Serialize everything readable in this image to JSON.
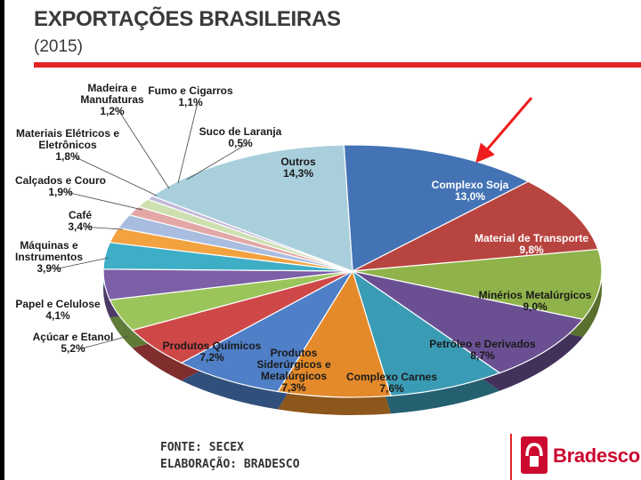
{
  "header": {
    "title": "EXPORTAÇÕES BRASILEIRAS",
    "subtitle": "(2015)"
  },
  "footer": {
    "source": "FONTE: SECEX",
    "elaboration": "ELABORAÇÃO: BRADESCO",
    "brand": "Bradesco"
  },
  "chart_data": {
    "type": "pie",
    "title": "EXPORTAÇÕES BRASILEIRAS",
    "subtitle": "(2015)",
    "unit": "%",
    "slices": [
      {
        "label": "Complexo Soja",
        "value": 13.0,
        "value_text": "13,0%",
        "color": "#4473b5"
      },
      {
        "label": "Material de Transporte",
        "value": 9.8,
        "value_text": "9,8%",
        "color": "#b8443f"
      },
      {
        "label": "Minérios Metalúrgicos",
        "value": 9.0,
        "value_text": "9,0%",
        "color": "#8fb34a"
      },
      {
        "label": "Petróleo e Derivados",
        "value": 8.7,
        "value_text": "8,7%",
        "color": "#6b4f93"
      },
      {
        "label": "Complexo Carnes",
        "value": 7.6,
        "value_text": "7,6%",
        "color": "#3a9bb4"
      },
      {
        "label": "Produtos Siderúrgicos e Metalúrgicos",
        "value": 7.3,
        "value_text": "7,3%",
        "color": "#e48a2b"
      },
      {
        "label": "Produtos Químicos",
        "value": 7.2,
        "value_text": "7,2%",
        "color": "#4f7fc6"
      },
      {
        "label": "Açúcar e Etanol",
        "value": 5.2,
        "value_text": "5,2%",
        "color": "#cf4848"
      },
      {
        "label": "Papel e Celulose",
        "value": 4.1,
        "value_text": "4,1%",
        "color": "#9bc55b"
      },
      {
        "label": "Máquinas e Instrumentos",
        "value": 3.9,
        "value_text": "3,9%",
        "color": "#7c5fa6"
      },
      {
        "label": "Café",
        "value": 3.4,
        "value_text": "3,4%",
        "color": "#3eaec7"
      },
      {
        "label": "Calçados e Couro",
        "value": 1.9,
        "value_text": "1,9%",
        "color": "#f3a240"
      },
      {
        "label": "Materiais Elétricos e Eletrônicos",
        "value": 1.8,
        "value_text": "1,8%",
        "color": "#a9bde0"
      },
      {
        "label": "Madeira e Manufaturas",
        "value": 1.2,
        "value_text": "1,2%",
        "color": "#e3a8a6"
      },
      {
        "label": "Fumo e Cigarros",
        "value": 1.1,
        "value_text": "1,1%",
        "color": "#cde0b0"
      },
      {
        "label": "Suco de Laranja",
        "value": 0.5,
        "value_text": "0,5%",
        "color": "#c3b8d9"
      },
      {
        "label": "Outros",
        "value": 14.3,
        "value_text": "14,3%",
        "color": "#a9cfdc"
      }
    ]
  }
}
